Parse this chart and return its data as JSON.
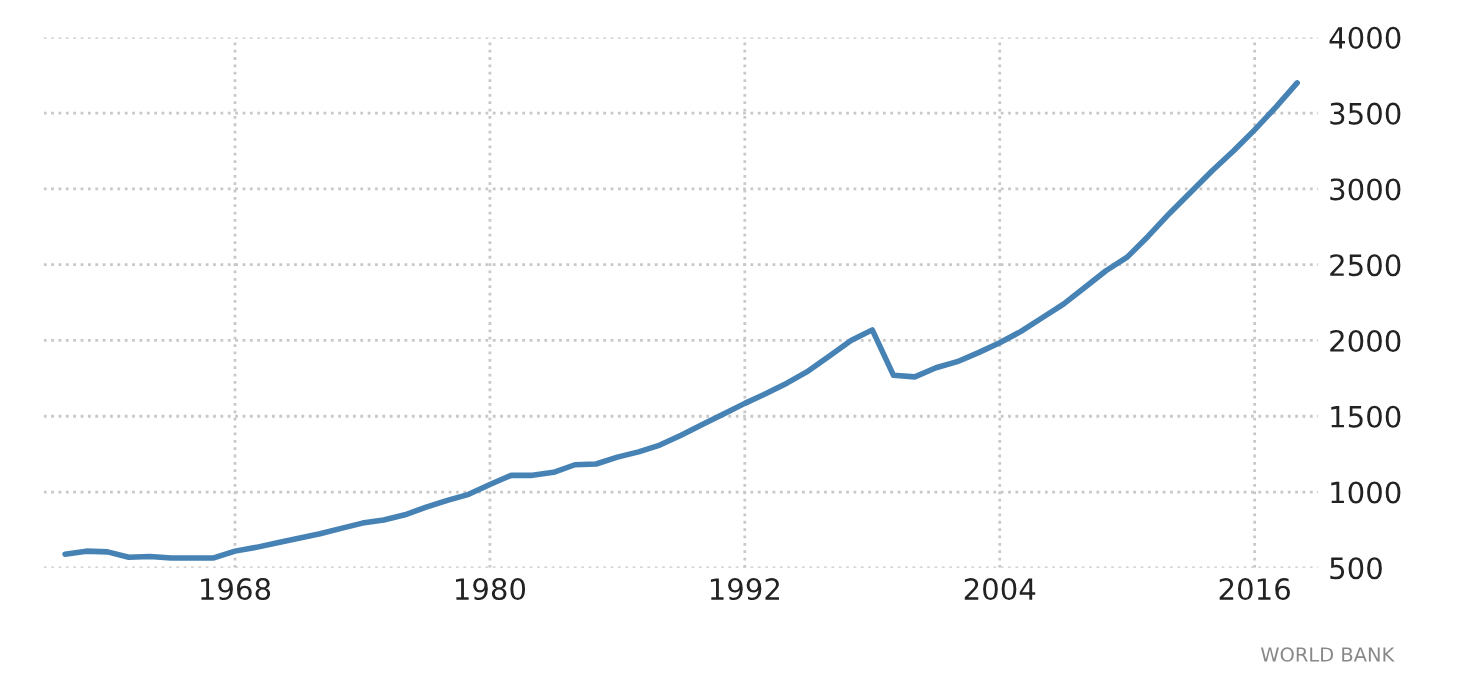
{
  "chart_data": {
    "type": "line",
    "x": [
      1960,
      1961,
      1962,
      1963,
      1964,
      1965,
      1966,
      1967,
      1968,
      1969,
      1970,
      1971,
      1972,
      1973,
      1974,
      1975,
      1976,
      1977,
      1978,
      1979,
      1980,
      1981,
      1982,
      1983,
      1984,
      1985,
      1986,
      1987,
      1988,
      1989,
      1990,
      1991,
      1992,
      1993,
      1994,
      1995,
      1996,
      1997,
      1998,
      1999,
      2000,
      2001,
      2002,
      2003,
      2004,
      2005,
      2006,
      2007,
      2008,
      2009,
      2010,
      2011,
      2012,
      2013,
      2014,
      2015,
      2016,
      2017,
      2018
    ],
    "series": [
      {
        "color": "#4682b4",
        "values": [
          590,
          610,
          605,
          570,
          575,
          565,
          565,
          565,
          610,
          635,
          665,
          695,
          725,
          760,
          795,
          815,
          850,
          900,
          945,
          985,
          1050,
          1110,
          1110,
          1130,
          1180,
          1185,
          1230,
          1265,
          1310,
          1375,
          1445,
          1515,
          1585,
          1650,
          1720,
          1800,
          1900,
          2000,
          2070,
          1770,
          1760,
          1820,
          1860,
          1920,
          1985,
          2060,
          2150,
          2240,
          2350,
          2460,
          2550,
          2690,
          2840,
          2980,
          3120,
          3250,
          3390,
          3540,
          3700
        ]
      }
    ],
    "xlim": [
      1959,
      2019
    ],
    "xticks": [
      1968,
      1980,
      1992,
      2004,
      2016
    ],
    "ylim": [
      500,
      4000
    ],
    "yticks": [
      500,
      1000,
      1500,
      2000,
      2500,
      3000,
      3500,
      4000
    ],
    "grid": true,
    "line_style": "solid",
    "marker": "none",
    "annotations": [
      "WORLD BANK"
    ]
  }
}
